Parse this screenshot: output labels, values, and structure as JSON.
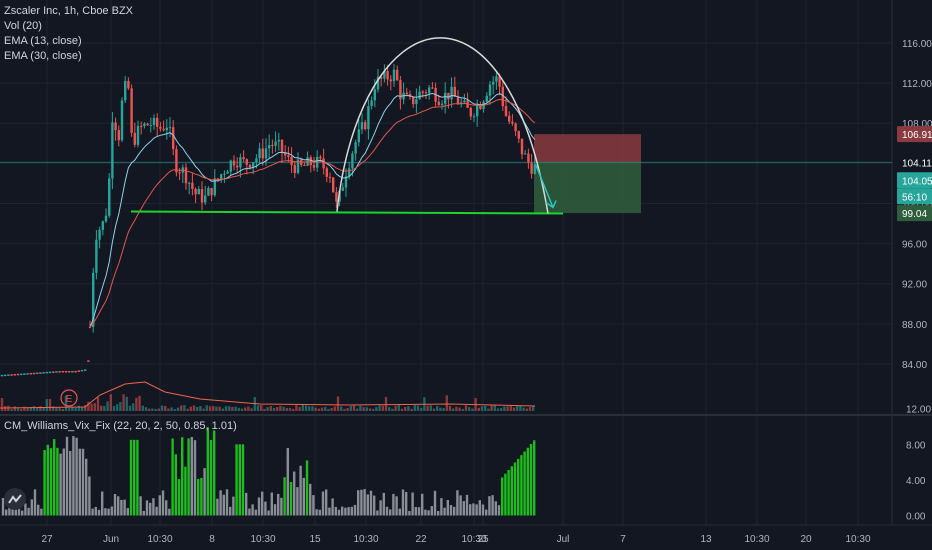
{
  "legend": {
    "symbol": "Zscaler Inc, 1h, Cboe BZX",
    "vol": "Vol (20)",
    "ema13": "EMA (13, close)",
    "ema30": "EMA (30, close)"
  },
  "indicator": {
    "title": "CM_Williams_Vix_Fix (22, 20, 2, 50, 0.85, 1.01)"
  },
  "colors": {
    "background": "#131722",
    "grid": "#1f2330",
    "up": "#26a69a",
    "down": "#ef5350",
    "ema13": "#8fd1e8",
    "ema30": "#e2574c",
    "volume_ma": "#f0654f",
    "support": "#1cd42a",
    "arc": "#d9d9d9",
    "arrow": "#29c7c0",
    "stop_zone": "#8b3a3f",
    "target_zone": "#2f5e3c",
    "vix_green": "#1cbd1c",
    "vix_gray": "#8a8d96",
    "earnings": "#ef5350"
  },
  "chart_data": [
    {
      "type": "candlestick",
      "title": "Zscaler Inc, 1h, Cboe BZX",
      "ylim": [
        81,
        118.5
      ],
      "y_ticks": [
        84.0,
        88.0,
        92.0,
        96.0,
        100.0,
        104.0,
        108.0,
        112.0,
        116.0
      ],
      "x_ticks": [
        "27",
        "Jun",
        "10:30",
        "8",
        "10:30",
        "15",
        "10:30",
        "22",
        "10:30",
        "25",
        "Jul",
        "7",
        "13",
        "10:30",
        "20",
        "10:30"
      ],
      "price_labels": {
        "stop": "106.91",
        "current_line": "104.11",
        "current": "104.05",
        "countdown": "56:10",
        "target": "99.04"
      },
      "annotations": {
        "earnings_marker": "E",
        "support_level": 99.0,
        "stop_level": 106.91,
        "entry_level": 104.11,
        "target_level": 99.04
      },
      "series": [
        {
          "name": "EMA (13, close)"
        },
        {
          "name": "EMA (30, close)"
        },
        {
          "name": "Vol (20)"
        }
      ]
    },
    {
      "type": "bar",
      "title": "CM_Williams_Vix_Fix (22, 20, 2, 50, 0.85, 1.01)",
      "ylim": [
        -0.5,
        12.5
      ],
      "y_ticks": [
        0.0,
        4.0,
        8.0,
        12.0
      ]
    }
  ]
}
